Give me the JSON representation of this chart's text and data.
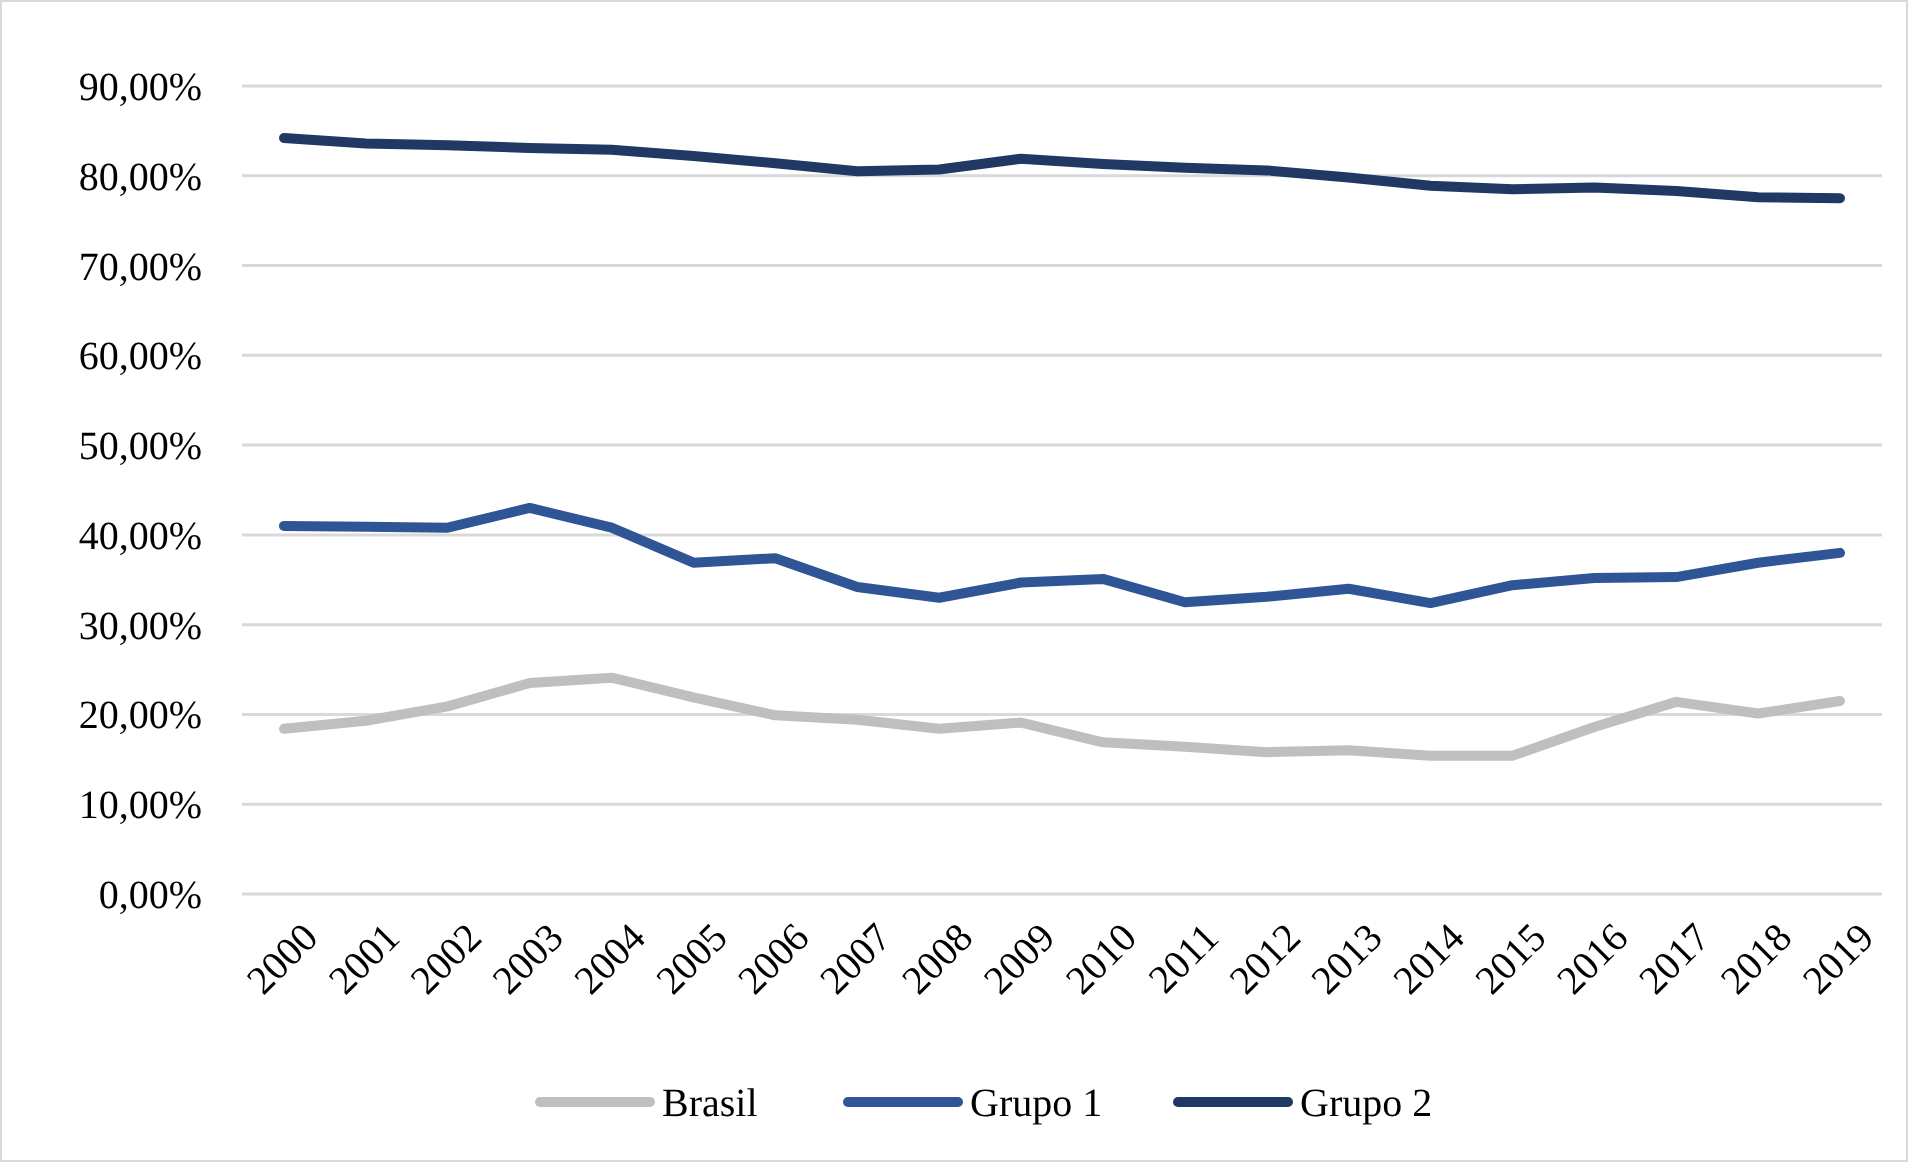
{
  "chart_data": {
    "type": "line",
    "categories": [
      "2000",
      "2001",
      "2002",
      "2003",
      "2004",
      "2005",
      "2006",
      "2007",
      "2008",
      "2009",
      "2010",
      "2011",
      "2012",
      "2013",
      "2014",
      "2015",
      "2016",
      "2017",
      "2018",
      "2019"
    ],
    "series": [
      {
        "name": "Brasil",
        "color": "#bfbfbf",
        "values": [
          18.4,
          19.3,
          20.9,
          23.5,
          24.1,
          21.9,
          19.9,
          19.4,
          18.4,
          19.1,
          16.9,
          16.4,
          15.8,
          16.0,
          15.4,
          15.4,
          18.6,
          21.4,
          20.1,
          21.5
        ]
      },
      {
        "name": "Grupo 1",
        "color": "#2f5597",
        "values": [
          41.0,
          40.9,
          40.8,
          43.0,
          40.8,
          36.9,
          37.4,
          34.2,
          33.0,
          34.7,
          35.1,
          32.5,
          33.1,
          34.0,
          32.4,
          34.4,
          35.2,
          35.3,
          36.9,
          38.0
        ]
      },
      {
        "name": "Grupo 2",
        "color": "#203864",
        "values": [
          84.2,
          83.6,
          83.4,
          83.1,
          82.9,
          82.2,
          81.4,
          80.5,
          80.7,
          81.9,
          81.3,
          80.9,
          80.6,
          79.8,
          78.9,
          78.5,
          78.7,
          78.3,
          77.6,
          77.5
        ]
      }
    ],
    "ylim": [
      0,
      90
    ],
    "yticks": [
      {
        "value": 0,
        "label": "0,00%"
      },
      {
        "value": 10,
        "label": "10,00%"
      },
      {
        "value": 20,
        "label": "20,00%"
      },
      {
        "value": 30,
        "label": "30,00%"
      },
      {
        "value": 40,
        "label": "40,00%"
      },
      {
        "value": 50,
        "label": "50,00%"
      },
      {
        "value": 60,
        "label": "60,00%"
      },
      {
        "value": 70,
        "label": "70,00%"
      },
      {
        "value": 80,
        "label": "80,00%"
      },
      {
        "value": 90,
        "label": "90,00%"
      }
    ],
    "grid": "y",
    "legend": "bottom"
  }
}
